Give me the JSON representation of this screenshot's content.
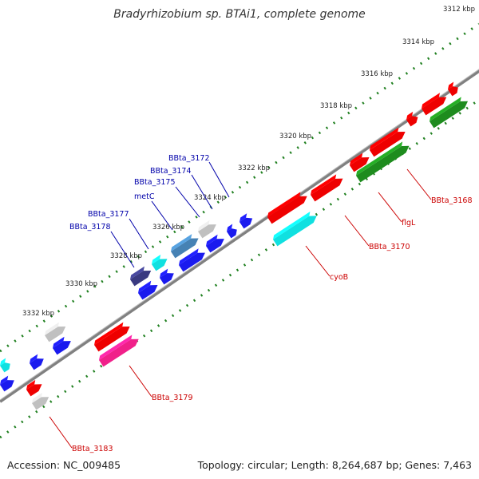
{
  "title": "Bradyrhizobium sp. BTAi1, complete genome",
  "footer": {
    "accession": "Accession: NC_009485",
    "summary": "Topology: circular; Length: 8,264,687 bp; Genes: 7,463"
  },
  "colors": {
    "red": "#ee0000",
    "green": "#1e8c1e",
    "blue": "#1a1aee",
    "cyan": "#10e0e0",
    "gray": "#c0c0c0",
    "steel": "#4682b4",
    "navy": "#3a3a80",
    "pink": "#f0208a",
    "backbone": "#808080",
    "tick_green": "#208020",
    "label_blue": "#0000aa",
    "label_red": "#cc0000"
  },
  "scale_labels": [
    "3312 kbp",
    "3314 kbp",
    "3316 kbp",
    "3318 kbp",
    "3320 kbp",
    "3322 kbp",
    "3324 kbp",
    "3326 kbp",
    "3328 kbp",
    "3330 kbp",
    "3332 kbp"
  ],
  "gene_labels_top": [
    "BBta_3172",
    "BBta_3174",
    "BBta_3175",
    "metC",
    "BBta_3177",
    "BBta_3178"
  ],
  "gene_labels_bottom": [
    "BBta_3168",
    "flgL",
    "BBta_3170",
    "cyoB",
    "BBta_3179",
    "BBta_3183"
  ],
  "genes": [
    {
      "color": "red",
      "track": 0
    },
    {
      "color": "red",
      "track": 0
    },
    {
      "color": "red",
      "track": 0
    },
    {
      "color": "red",
      "track": 0
    },
    {
      "color": "red",
      "track": 0
    },
    {
      "color": "red",
      "track": 0
    },
    {
      "color": "red",
      "track": 0
    },
    {
      "color": "red",
      "track": 0
    },
    {
      "color": "red",
      "track": 0
    },
    {
      "color": "green",
      "track": 1
    },
    {
      "color": "green",
      "track": 1
    },
    {
      "color": "cyan",
      "track": 1
    },
    {
      "color": "pink",
      "track": 1
    },
    {
      "color": "gray",
      "track": 1
    },
    {
      "color": "gray",
      "track": -1
    },
    {
      "color": "steel",
      "track": -1
    },
    {
      "color": "cyan",
      "track": -1
    },
    {
      "color": "navy",
      "track": -1
    },
    {
      "color": "gray",
      "track": -1
    },
    {
      "color": "cyan",
      "track": -1
    },
    {
      "color": "blue",
      "track": -2
    },
    {
      "color": "blue",
      "track": -2
    },
    {
      "color": "blue",
      "track": -2
    },
    {
      "color": "blue",
      "track": -2
    },
    {
      "color": "blue",
      "track": -2
    },
    {
      "color": "blue",
      "track": -2
    },
    {
      "color": "blue",
      "track": -2
    },
    {
      "color": "blue",
      "track": -2
    },
    {
      "color": "blue",
      "track": -2
    }
  ]
}
